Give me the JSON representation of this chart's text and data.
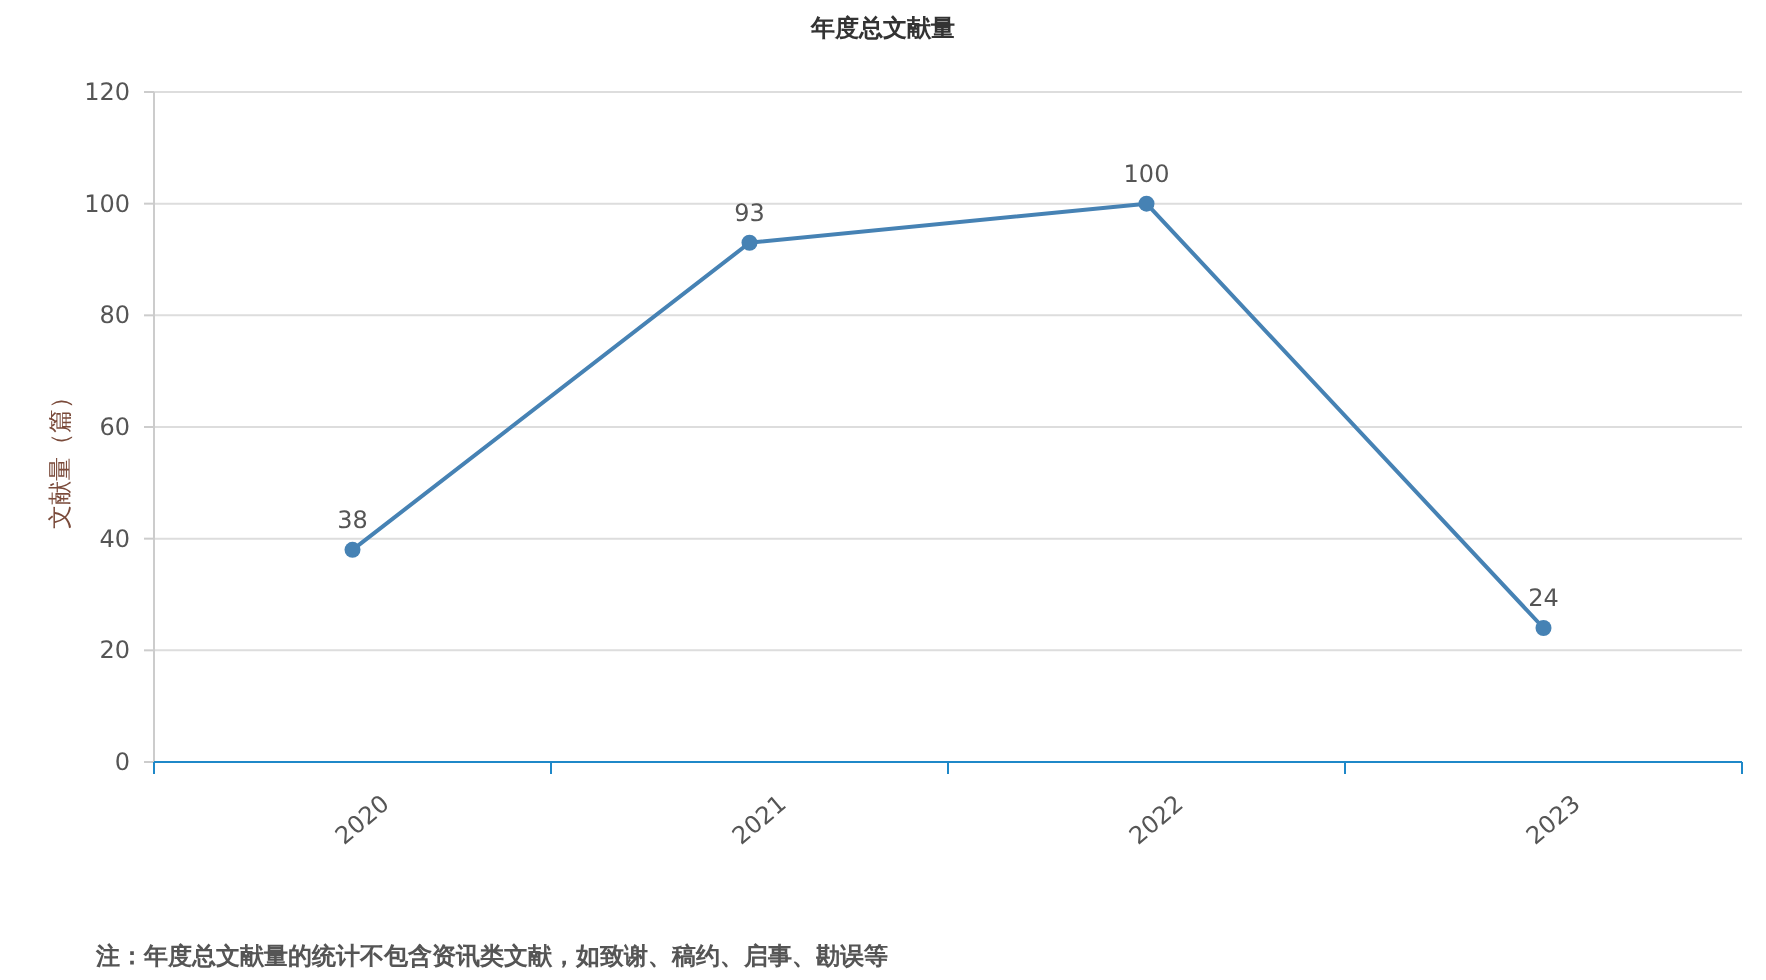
{
  "chart_data": {
    "type": "line",
    "title": "年度总文献量",
    "ylabel": "文献量（篇）",
    "categories": [
      "2020",
      "2021",
      "2022",
      "2023"
    ],
    "series": [
      {
        "color": "#4682b4",
        "values": [
          38,
          93,
          100,
          24
        ]
      }
    ],
    "ylim": [
      0,
      120
    ],
    "yticks": [
      0,
      20,
      40,
      60,
      80,
      100,
      120
    ],
    "grid": "y",
    "marker": "circle",
    "line_style": "solid",
    "data_labels": true,
    "annotations": [
      "注：年度总文献量的统计不包含资讯类文献，如致谢、稿约、启事、勘误等"
    ]
  }
}
